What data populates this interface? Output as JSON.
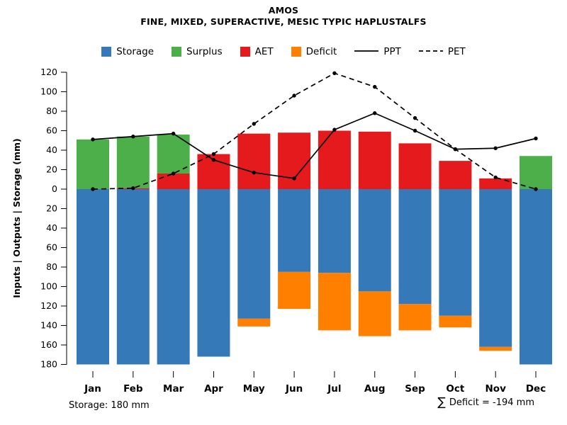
{
  "footer": {
    "storage_note": "Storage: 180 mm",
    "sum_symbol": "∑",
    "deficit_note": "Deficit = -194 mm"
  },
  "colors": {
    "storage": "#3579B8",
    "surplus": "#4DAF4A",
    "aet": "#E41A1C",
    "deficit": "#FF7F00",
    "line": "#000000"
  },
  "chart_data": {
    "type": "combo-stacked-bar-line",
    "title": "AMOS",
    "subtitle": "FINE, MIXED, SUPERACTIVE, MESIC TYPIC HAPLUSTALFS",
    "xlabel": "",
    "ylabel": "Inputs | Outputs | Storage  (mm)",
    "categories": [
      "Jan",
      "Feb",
      "Mar",
      "Apr",
      "May",
      "Jun",
      "Jul",
      "Aug",
      "Sep",
      "Oct",
      "Nov",
      "Dec"
    ],
    "y_axis": {
      "up_max": 120,
      "down_max": 180,
      "tick_step": 20,
      "units": "mm"
    },
    "grid": false,
    "legend_position": "top",
    "series": [
      {
        "name": "Storage",
        "type": "bar",
        "direction": "down",
        "color_key": "storage",
        "values": [
          180,
          180,
          180,
          172,
          133,
          85,
          86,
          105,
          118,
          130,
          162,
          180
        ]
      },
      {
        "name": "Deficit",
        "type": "bar",
        "direction": "down",
        "stack_on": "Storage",
        "color_key": "deficit",
        "values": [
          0,
          0,
          0,
          0,
          8,
          38,
          59,
          46,
          27,
          12,
          4,
          0
        ]
      },
      {
        "name": "AET",
        "type": "bar",
        "direction": "up",
        "color_key": "aet",
        "values": [
          0,
          1,
          16,
          36,
          57,
          58,
          60,
          59,
          47,
          29,
          11,
          0
        ]
      },
      {
        "name": "Surplus",
        "type": "bar",
        "direction": "up",
        "stack_on": "AET",
        "color_key": "surplus",
        "values": [
          51,
          53,
          40,
          0,
          0,
          0,
          0,
          0,
          0,
          0,
          0,
          34
        ]
      },
      {
        "name": "PPT",
        "type": "line",
        "style": "solid",
        "values": [
          51,
          54,
          57,
          30,
          17,
          11,
          61,
          78,
          60,
          41,
          42,
          52
        ]
      },
      {
        "name": "PET",
        "type": "line",
        "style": "dashed",
        "values": [
          0,
          1,
          16,
          36,
          67,
          96,
          119,
          105,
          73,
          41,
          12,
          0
        ]
      }
    ]
  }
}
